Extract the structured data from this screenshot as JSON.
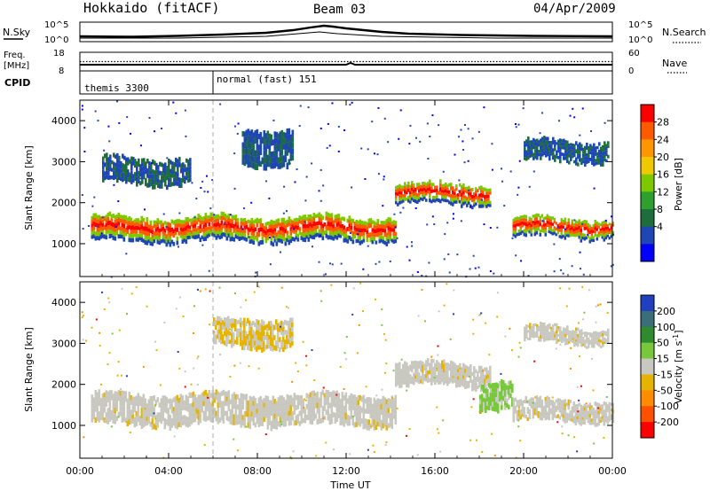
{
  "header": {
    "station": "Hokkaido (fitACF)",
    "beam": "Beam 03",
    "date": "04/Apr/2009"
  },
  "time_axis": {
    "label": "Time UT",
    "ticks": [
      "00:00",
      "04:00",
      "08:00",
      "12:00",
      "16:00",
      "20:00",
      "00:00"
    ]
  },
  "noise_panel": {
    "left_label": "N.Sky",
    "right_label": "N.Search",
    "left_ticks": [
      "10^5",
      "10^0"
    ],
    "right_ticks": [
      "10^5",
      "10^0"
    ]
  },
  "freq_panel": {
    "left_label_line1": "Freq.",
    "left_label_line2": "[MHz]",
    "right_label": "Nave",
    "left_ticks": [
      "18",
      "8"
    ],
    "right_ticks": [
      "60",
      "0"
    ]
  },
  "cpid_panel": {
    "label": "CPID",
    "modes": [
      "themis 3300",
      "normal (fast) 151"
    ]
  },
  "chart_data": [
    {
      "type": "heatmap",
      "ylabel": "Slant Range [km]",
      "yticks": [
        1000,
        2000,
        3000,
        4000
      ],
      "ylim": [
        200,
        4500
      ],
      "xlim_hours": [
        0,
        24
      ],
      "colorbar": {
        "label": "Power [dB]",
        "ticks": [
          "28",
          "24",
          "20",
          "16",
          "12",
          "8",
          "4"
        ],
        "colors": [
          "#ff0000",
          "#ff5a00",
          "#ff9600",
          "#f0c800",
          "#7ec800",
          "#2ea02e",
          "#1e6e3c",
          "#1e46b4",
          "#0000ff"
        ]
      },
      "echo_regions": [
        {
          "t0": 0.5,
          "t1": 14.2,
          "r_low": 1050,
          "r_high": 1650,
          "level": "high"
        },
        {
          "t0": 14.2,
          "t1": 18.5,
          "r_low": 1950,
          "r_high": 2450,
          "level": "high"
        },
        {
          "t0": 19.5,
          "t1": 24.0,
          "r_low": 1150,
          "r_high": 1600,
          "level": "high"
        },
        {
          "t0": 1.0,
          "t1": 5.0,
          "r_low": 2450,
          "r_high": 3100,
          "level": "low"
        },
        {
          "t0": 7.3,
          "t1": 9.6,
          "r_low": 2900,
          "r_high": 3800,
          "level": "low"
        },
        {
          "t0": 20.0,
          "t1": 23.8,
          "r_low": 3000,
          "r_high": 3500,
          "level": "low"
        }
      ]
    },
    {
      "type": "heatmap",
      "ylabel": "Slant Range [km]",
      "yticks": [
        1000,
        2000,
        3000,
        4000
      ],
      "ylim": [
        200,
        4500
      ],
      "xlim_hours": [
        0,
        24
      ],
      "colorbar": {
        "label_prefix": "Velocity [m s",
        "label_superscript": "-1",
        "label_suffix": "]",
        "ticks": [
          "200",
          "100",
          "50",
          "15",
          "-15",
          "-50",
          "-100",
          "-200"
        ],
        "colors": [
          "#2040c0",
          "#3a6e7a",
          "#2e8b2e",
          "#78c83c",
          "#c8c8c0",
          "#e6b400",
          "#ff8c00",
          "#ff5000",
          "#ff0000"
        ]
      },
      "echo_regions": [
        {
          "t0": 0.5,
          "t1": 14.2,
          "r_low": 1000,
          "r_high": 1750,
          "level": "ground"
        },
        {
          "t0": 14.2,
          "t1": 18.5,
          "r_low": 1950,
          "r_high": 2500,
          "level": "ground"
        },
        {
          "t0": 18.0,
          "t1": 19.5,
          "r_low": 1400,
          "r_high": 2100,
          "level": "green"
        },
        {
          "t0": 19.5,
          "t1": 24.0,
          "r_low": 1100,
          "r_high": 1600,
          "level": "ground"
        },
        {
          "t0": 6.0,
          "t1": 9.6,
          "r_low": 2900,
          "r_high": 3600,
          "level": "orange"
        },
        {
          "t0": 20.0,
          "t1": 23.8,
          "r_low": 3000,
          "r_high": 3400,
          "level": "ground"
        }
      ]
    }
  ]
}
